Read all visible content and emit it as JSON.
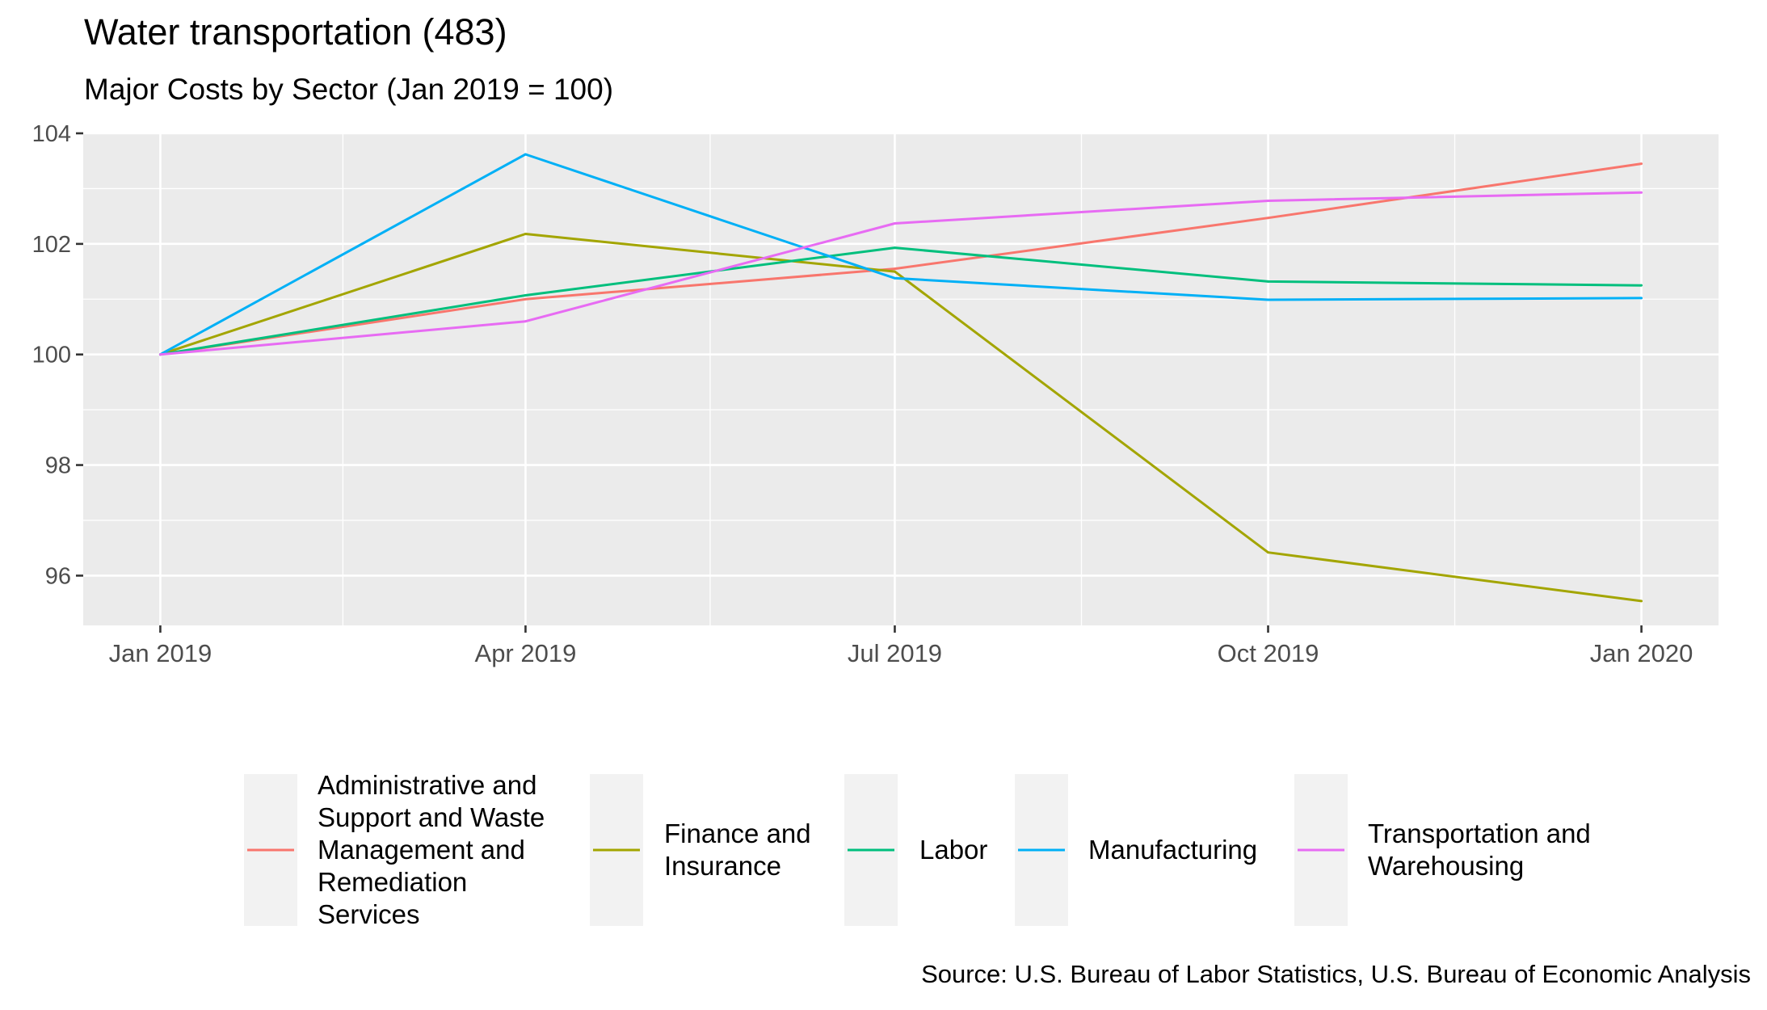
{
  "chart_data": {
    "type": "line",
    "title": "Water transportation (483)",
    "subtitle": "Major Costs by Sector (Jan 2019 = 100)",
    "xlabel": "",
    "ylabel": "",
    "x": [
      "Jan 2019",
      "Apr 2019",
      "Jul 2019",
      "Oct 2019",
      "Jan 2020"
    ],
    "x_dates": [
      "2019-01-01",
      "2019-04-01",
      "2019-07-01",
      "2019-10-01",
      "2020-01-01"
    ],
    "y_ticks": [
      96,
      98,
      100,
      102,
      104
    ],
    "ylim": [
      95.1,
      104.0
    ],
    "xlim": [
      "2018-12-13",
      "2020-01-20"
    ],
    "grid": true,
    "legend_position": "bottom",
    "series": [
      {
        "name": "Administrative and\nSupport and Waste\nManagement and\nRemediation\nServices",
        "color": "#F8766D",
        "values": [
          100.0,
          101.0,
          101.55,
          102.47,
          103.45
        ]
      },
      {
        "name": "Finance and\nInsurance",
        "color": "#A3A500",
        "values": [
          100.0,
          102.18,
          101.5,
          96.42,
          95.54
        ]
      },
      {
        "name": "Labor",
        "color": "#00BF7D",
        "values": [
          100.0,
          101.07,
          101.93,
          101.32,
          101.25
        ]
      },
      {
        "name": "Manufacturing",
        "color": "#00B0F6",
        "values": [
          100.0,
          103.62,
          101.38,
          100.99,
          101.02
        ]
      },
      {
        "name": "Transportation and\nWarehousing",
        "color": "#E76BF3",
        "values": [
          100.0,
          100.6,
          102.37,
          102.78,
          102.93
        ]
      }
    ],
    "caption": "Source: U.S. Bureau of Labor Statistics, U.S. Bureau of Economic Analysis"
  }
}
